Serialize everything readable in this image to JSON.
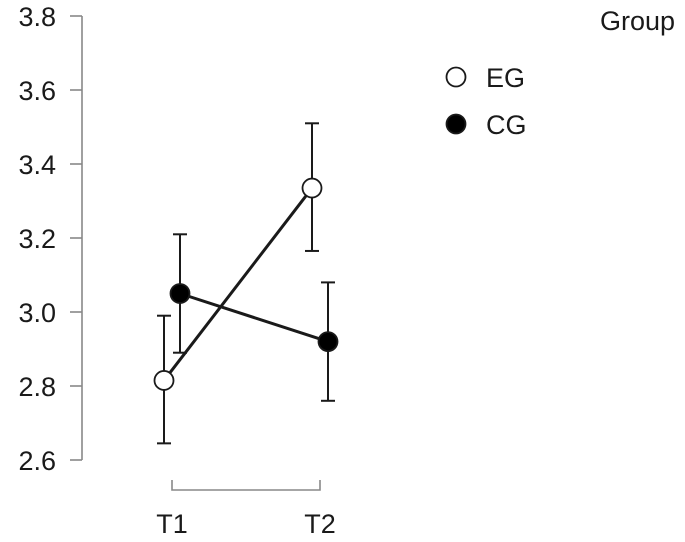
{
  "chart_data": {
    "type": "line",
    "categories": [
      "T1",
      "T2"
    ],
    "ylim": [
      2.6,
      3.8
    ],
    "yticks": [
      "2.6",
      "2.8",
      "3.0",
      "3.2",
      "3.4",
      "3.6",
      "3.8"
    ],
    "grid": false,
    "legend": {
      "title": "Group",
      "placement": "top-right"
    },
    "series": [
      {
        "name": "EG",
        "marker": "open-circle",
        "values": [
          2.815,
          3.335
        ],
        "lower": [
          2.645,
          3.165
        ],
        "upper": [
          2.99,
          3.51
        ]
      },
      {
        "name": "CG",
        "marker": "filled-circle",
        "values": [
          3.05,
          2.92
        ],
        "lower": [
          2.89,
          2.76
        ],
        "upper": [
          3.21,
          3.08
        ]
      }
    ]
  }
}
